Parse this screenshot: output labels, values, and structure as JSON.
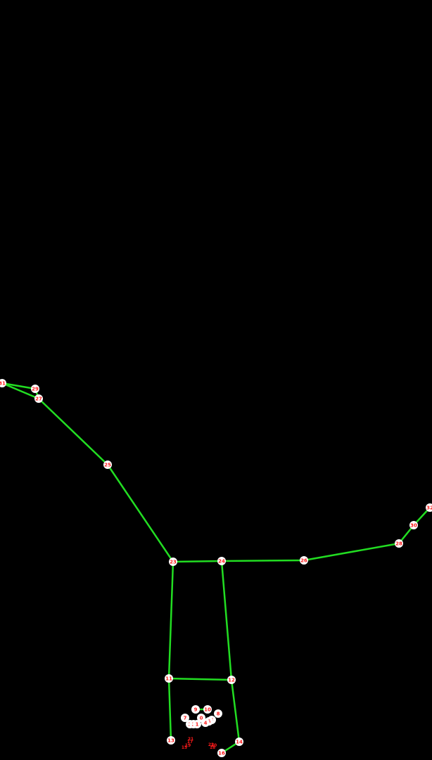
{
  "colors": {
    "background": "#000000",
    "skeleton_line": "#22dd22",
    "keypoint_fill": "#ffffff",
    "keypoint_label": "#ff1a1a"
  },
  "keypoints": [
    {
      "id": "0",
      "label": "0"
    },
    {
      "id": "1",
      "label": "1"
    },
    {
      "id": "2",
      "label": "2"
    },
    {
      "id": "3",
      "label": "3"
    },
    {
      "id": "4",
      "label": "4"
    },
    {
      "id": "5",
      "label": "5"
    },
    {
      "id": "6",
      "label": "6"
    },
    {
      "id": "7",
      "label": "7"
    },
    {
      "id": "8",
      "label": "8"
    },
    {
      "id": "9",
      "label": "9"
    },
    {
      "id": "10",
      "label": "10"
    },
    {
      "id": "11",
      "label": "11"
    },
    {
      "id": "12",
      "label": "12"
    },
    {
      "id": "13",
      "label": "13"
    },
    {
      "id": "14",
      "label": "14"
    },
    {
      "id": "15",
      "label": "15"
    },
    {
      "id": "16",
      "label": "16"
    },
    {
      "id": "17",
      "label": "17"
    },
    {
      "id": "18",
      "label": "18"
    },
    {
      "id": "19",
      "label": "19"
    },
    {
      "id": "20",
      "label": "20"
    },
    {
      "id": "21",
      "label": "21"
    },
    {
      "id": "22",
      "label": "22"
    },
    {
      "id": "23",
      "label": "23"
    },
    {
      "id": "24",
      "label": "24"
    },
    {
      "id": "25",
      "label": "25"
    },
    {
      "id": "26",
      "label": "26"
    },
    {
      "id": "27",
      "label": "27"
    },
    {
      "id": "28",
      "label": "28"
    },
    {
      "id": "29",
      "label": "29"
    },
    {
      "id": "30",
      "label": "30"
    },
    {
      "id": "31",
      "label": "31"
    },
    {
      "id": "32",
      "label": "32"
    }
  ],
  "connections": [
    [
      "9",
      "10"
    ],
    [
      "11",
      "12"
    ],
    [
      "11",
      "23"
    ],
    [
      "12",
      "24"
    ],
    [
      "23",
      "24"
    ],
    [
      "11",
      "13"
    ],
    [
      "12",
      "14"
    ],
    [
      "14",
      "16"
    ],
    [
      "23",
      "25"
    ],
    [
      "25",
      "27"
    ],
    [
      "27",
      "29"
    ],
    [
      "27",
      "31"
    ],
    [
      "29",
      "31"
    ],
    [
      "24",
      "26"
    ],
    [
      "26",
      "28"
    ],
    [
      "28",
      "30"
    ],
    [
      "30",
      "32"
    ]
  ]
}
